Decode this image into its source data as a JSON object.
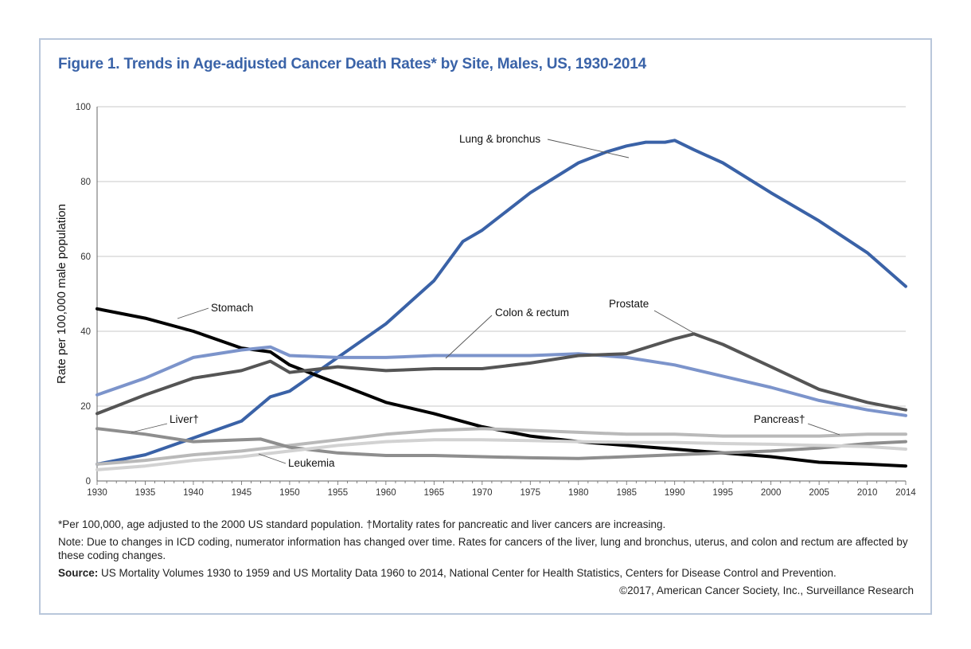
{
  "title": "Figure 1. Trends in Age-adjusted Cancer Death Rates* by Site, Males, US, 1930-2014",
  "footnotes": {
    "line1": "*Per 100,000, age adjusted to the 2000 US standard population. †Mortality rates for pancreatic and liver cancers are increasing.",
    "note": "Note: Due to changes in ICD coding, numerator information has changed over time. Rates for cancers of the liver, lung and bronchus, uterus, and colon and rectum are affected by these coding changes.",
    "source_label": "Source:",
    "source_text": " US Mortality Volumes 1930 to 1959 and US Mortality Data 1960 to 2014, National Center for Health Statistics, Centers for Disease Control and Prevention.",
    "copyright": "©2017, American Cancer Society, Inc., Surveillance Research"
  },
  "chart_data": {
    "type": "line",
    "title": "Figure 1. Trends in Age-adjusted Cancer Death Rates* by Site, Males, US, 1930-2014",
    "xlabel": "",
    "ylabel": "Rate per 100,000 male population",
    "xlim": [
      1930,
      2014
    ],
    "ylim": [
      0,
      100
    ],
    "yticks": [
      0,
      20,
      40,
      60,
      80,
      100
    ],
    "xticks": [
      "1930",
      "1935",
      "1940",
      "1945",
      "1950",
      "1955",
      "1960",
      "1965",
      "1970",
      "1975",
      "1980",
      "1985",
      "1990",
      "1995",
      "2000",
      "2005",
      "2010",
      "2014"
    ],
    "grid": "horizontal",
    "series": [
      {
        "name": "Lung & bronchus",
        "label": "Lung & bronchus",
        "color": "#3a62a7",
        "width": 4,
        "points": [
          [
            1930,
            4.5
          ],
          [
            1935,
            7
          ],
          [
            1940,
            11.5
          ],
          [
            1945,
            16
          ],
          [
            1948,
            22.5
          ],
          [
            1950,
            24
          ],
          [
            1955,
            33
          ],
          [
            1960,
            42
          ],
          [
            1965,
            53.5
          ],
          [
            1968,
            64
          ],
          [
            1970,
            67
          ],
          [
            1975,
            77
          ],
          [
            1980,
            85
          ],
          [
            1983,
            88
          ],
          [
            1985,
            89.5
          ],
          [
            1987,
            90.5
          ],
          [
            1989,
            90.5
          ],
          [
            1990,
            91
          ],
          [
            1992,
            88.5
          ],
          [
            1995,
            85
          ],
          [
            2000,
            77
          ],
          [
            2005,
            69.5
          ],
          [
            2010,
            61
          ],
          [
            2014,
            52
          ]
        ]
      },
      {
        "name": "Stomach",
        "label": "Stomach",
        "color": "#000000",
        "width": 4,
        "points": [
          [
            1930,
            46
          ],
          [
            1935,
            43.5
          ],
          [
            1940,
            40
          ],
          [
            1945,
            35.5
          ],
          [
            1948,
            34.5
          ],
          [
            1950,
            31
          ],
          [
            1955,
            26
          ],
          [
            1960,
            21
          ],
          [
            1965,
            18
          ],
          [
            1970,
            14.5
          ],
          [
            1975,
            12
          ],
          [
            1980,
            10.5
          ],
          [
            1985,
            9.5
          ],
          [
            1990,
            8.5
          ],
          [
            1995,
            7.5
          ],
          [
            2000,
            6.5
          ],
          [
            2005,
            5
          ],
          [
            2010,
            4.5
          ],
          [
            2014,
            4
          ]
        ]
      },
      {
        "name": "Colon & rectum",
        "label": "Colon & rectum",
        "color": "#7c94cb",
        "width": 4,
        "points": [
          [
            1930,
            23
          ],
          [
            1935,
            27.5
          ],
          [
            1940,
            33
          ],
          [
            1945,
            35
          ],
          [
            1948,
            35.8
          ],
          [
            1950,
            33.5
          ],
          [
            1955,
            33
          ],
          [
            1960,
            33
          ],
          [
            1965,
            33.5
          ],
          [
            1970,
            33.5
          ],
          [
            1975,
            33.5
          ],
          [
            1980,
            34
          ],
          [
            1985,
            33
          ],
          [
            1990,
            31
          ],
          [
            1995,
            28
          ],
          [
            2000,
            25
          ],
          [
            2005,
            21.5
          ],
          [
            2010,
            19
          ],
          [
            2014,
            17.5
          ]
        ]
      },
      {
        "name": "Prostate",
        "label": "Prostate",
        "color": "#555555",
        "width": 4,
        "points": [
          [
            1930,
            18
          ],
          [
            1935,
            23
          ],
          [
            1940,
            27.5
          ],
          [
            1945,
            29.5
          ],
          [
            1948,
            32
          ],
          [
            1950,
            29
          ],
          [
            1955,
            30.5
          ],
          [
            1960,
            29.5
          ],
          [
            1965,
            30
          ],
          [
            1970,
            30
          ],
          [
            1975,
            31.5
          ],
          [
            1980,
            33.5
          ],
          [
            1985,
            34
          ],
          [
            1990,
            38
          ],
          [
            1992,
            39.3
          ],
          [
            1995,
            36.5
          ],
          [
            2000,
            30.5
          ],
          [
            2005,
            24.5
          ],
          [
            2010,
            21
          ],
          [
            2014,
            19
          ]
        ]
      },
      {
        "name": "Pancreas",
        "label": "Pancreas†",
        "color": "#b9b9b9",
        "width": 4,
        "points": [
          [
            1930,
            4.5
          ],
          [
            1935,
            5.5
          ],
          [
            1940,
            7
          ],
          [
            1945,
            8
          ],
          [
            1950,
            9.5
          ],
          [
            1955,
            11
          ],
          [
            1960,
            12.5
          ],
          [
            1965,
            13.5
          ],
          [
            1970,
            14
          ],
          [
            1975,
            13.5
          ],
          [
            1980,
            13
          ],
          [
            1985,
            12.5
          ],
          [
            1990,
            12.5
          ],
          [
            1995,
            12
          ],
          [
            2000,
            12
          ],
          [
            2005,
            12
          ],
          [
            2010,
            12.5
          ],
          [
            2014,
            12.5
          ]
        ]
      },
      {
        "name": "Liver",
        "label": "Liver†",
        "color": "#8e8e8e",
        "width": 4,
        "points": [
          [
            1930,
            14
          ],
          [
            1935,
            12.5
          ],
          [
            1940,
            10.5
          ],
          [
            1945,
            11
          ],
          [
            1947,
            11.2
          ],
          [
            1950,
            9
          ],
          [
            1955,
            7.5
          ],
          [
            1960,
            6.8
          ],
          [
            1965,
            6.8
          ],
          [
            1970,
            6.5
          ],
          [
            1975,
            6.2
          ],
          [
            1980,
            6
          ],
          [
            1985,
            6.5
          ],
          [
            1990,
            7
          ],
          [
            1995,
            7.5
          ],
          [
            2000,
            8
          ],
          [
            2005,
            8.8
          ],
          [
            2010,
            10
          ],
          [
            2014,
            10.5
          ]
        ]
      },
      {
        "name": "Leukemia",
        "label": "Leukemia",
        "color": "#d2d2d2",
        "width": 4,
        "points": [
          [
            1930,
            3
          ],
          [
            1935,
            4
          ],
          [
            1940,
            5.5
          ],
          [
            1945,
            6.5
          ],
          [
            1950,
            8
          ],
          [
            1955,
            9.5
          ],
          [
            1960,
            10.5
          ],
          [
            1965,
            11
          ],
          [
            1970,
            11
          ],
          [
            1975,
            10.8
          ],
          [
            1980,
            10.5
          ],
          [
            1985,
            10.3
          ],
          [
            1990,
            10.3
          ],
          [
            1995,
            10
          ],
          [
            2000,
            9.8
          ],
          [
            2005,
            9.5
          ],
          [
            2010,
            9.2
          ],
          [
            2014,
            8.5
          ]
        ]
      }
    ]
  }
}
